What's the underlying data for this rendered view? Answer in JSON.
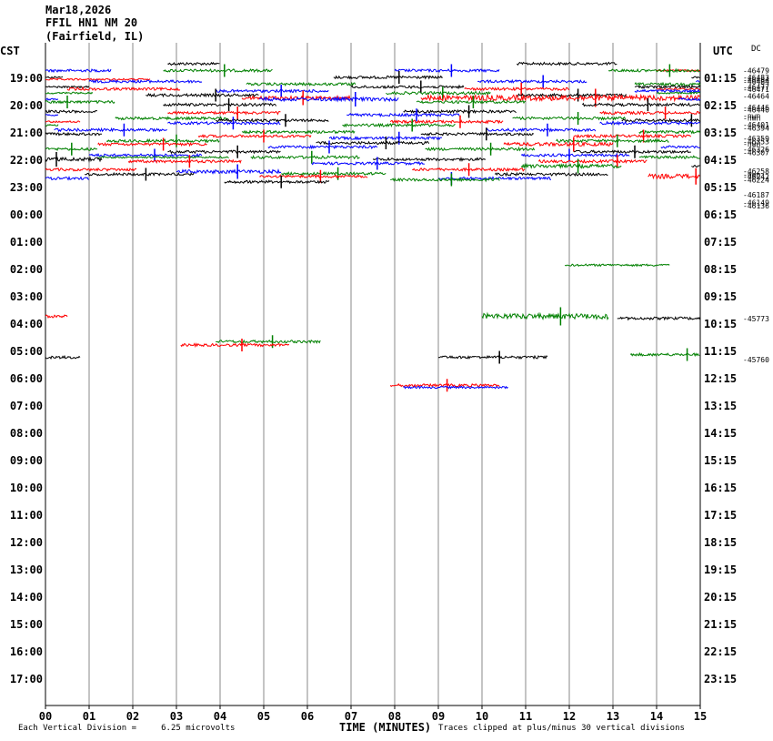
{
  "header": {
    "date": "Mar18,2026",
    "station": "FFIL HN1 NM 20",
    "location": "(Fairfield, IL)"
  },
  "corner_labels": {
    "left": "CST",
    "right": "UTC",
    "dc": "DC"
  },
  "footer": {
    "scale_note": "Each Vertical Division =     6.25 microvolts",
    "xlabel": "TIME (MINUTES)",
    "clip_note": "Traces clipped at plus/minus 30 vertical divisions"
  },
  "chart_data": {
    "type": "line",
    "title": "FFIL HN1 NM 20 (Fairfield, IL)",
    "xlabel": "TIME (MINUTES)",
    "xlim": [
      0,
      15
    ],
    "x_ticks": [
      "00",
      "01",
      "02",
      "03",
      "04",
      "05",
      "06",
      "07",
      "08",
      "09",
      "10",
      "11",
      "12",
      "13",
      "14",
      "15"
    ],
    "grid": true,
    "line_colors": [
      "#000000",
      "#ff0000",
      "#0000ff",
      "#008000"
    ],
    "rows_per_hour": 4,
    "left_hour_labels": [
      "19:00",
      "20:00",
      "21:00",
      "22:00",
      "23:00",
      "00:00",
      "01:00",
      "02:00",
      "03:00",
      "04:00",
      "05:00",
      "06:00",
      "07:00",
      "08:00",
      "09:00",
      "10:00",
      "11:00",
      "12:00",
      "13:00",
      "14:00",
      "15:00",
      "16:00",
      "17:00"
    ],
    "right_hour_labels": [
      "01:15",
      "02:15",
      "03:15",
      "04:15",
      "05:15",
      "06:15",
      "07:15",
      "08:15",
      "09:15",
      "10:15",
      "11:15",
      "12:15",
      "13:15",
      "14:15",
      "15:15",
      "16:15",
      "17:15",
      "18:15",
      "19:15",
      "20:15",
      "21:15",
      "22:15",
      "23:15"
    ],
    "dc_offsets": [
      {
        "row": -1,
        "value": "-46479"
      },
      {
        "row": 0,
        "value": "-46483"
      },
      {
        "row": 0.3,
        "value": "-46484"
      },
      {
        "row": 0.6,
        "value": "-46484"
      },
      {
        "row": 1.4,
        "value": "-46477"
      },
      {
        "row": 1.7,
        "value": "-46471"
      },
      {
        "row": 2.7,
        "value": "-46464"
      },
      {
        "row": 4.4,
        "value": "-46446"
      },
      {
        "row": 4.7,
        "value": "-46440"
      },
      {
        "row": 5.6,
        "value": "-nwn"
      },
      {
        "row": 5.9,
        "value": "-nwn"
      },
      {
        "row": 6.9,
        "value": "-46401"
      },
      {
        "row": 7.4,
        "value": "-46394"
      },
      {
        "row": 8.9,
        "value": "-46359"
      },
      {
        "row": 9.4,
        "value": "-46353"
      },
      {
        "row": 9.7,
        "value": "-nwn"
      },
      {
        "row": 10.5,
        "value": "-46326"
      },
      {
        "row": 11.0,
        "value": "-46307"
      },
      {
        "row": 13.7,
        "value": "-46258"
      },
      {
        "row": 14.2,
        "value": "-nwn"
      },
      {
        "row": 14.5,
        "value": "-46242"
      },
      {
        "row": 15.0,
        "value": "-46224"
      },
      {
        "row": 17.2,
        "value": "-46187"
      },
      {
        "row": 18.3,
        "value": "-46149"
      },
      {
        "row": 18.8,
        "value": "-46136"
      },
      {
        "row": 35.3,
        "value": "-45773"
      },
      {
        "row": 41.3,
        "value": "-45760"
      }
    ],
    "traces": [
      {
        "row": -2,
        "color": "black",
        "x0": 2.8,
        "x1": 4.0,
        "amp": 1.5
      },
      {
        "row": -2,
        "color": "black",
        "x0": 10.8,
        "x1": 13.1,
        "amp": 1.5
      },
      {
        "row": -1,
        "color": "blue",
        "x0": 0.0,
        "x1": 1.5,
        "amp": 1.5
      },
      {
        "row": -1,
        "color": "green",
        "x0": 2.7,
        "x1": 5.2,
        "amp": 1.5,
        "spike": 4.1
      },
      {
        "row": -1,
        "color": "blue",
        "x0": 8.0,
        "x1": 10.4,
        "amp": 1.5,
        "spike": 9.3
      },
      {
        "row": -1,
        "color": "red",
        "x0": 14.0,
        "x1": 15.0,
        "amp": 1.0
      },
      {
        "row": -1,
        "color": "green",
        "x0": 12.9,
        "x1": 15.0,
        "amp": 1.5,
        "spike": 14.3
      },
      {
        "row": 0,
        "color": "black",
        "x0": 0.0,
        "x1": 0.4,
        "amp": 1.0
      },
      {
        "row": 0,
        "color": "black",
        "x0": 6.6,
        "x1": 9.1,
        "amp": 1.5,
        "spike": 8.1
      },
      {
        "row": 0,
        "color": "black",
        "x0": 14.8,
        "x1": 15.0,
        "amp": 1.0
      },
      {
        "row": 0.3,
        "color": "red",
        "x0": 0.0,
        "x1": 2.4,
        "amp": 1.0
      },
      {
        "row": 0.6,
        "color": "blue",
        "x0": 1.0,
        "x1": 3.6,
        "amp": 1.5
      },
      {
        "row": 0.6,
        "color": "blue",
        "x0": 9.9,
        "x1": 12.4,
        "amp": 1.5,
        "spike": 11.4
      },
      {
        "row": 0.6,
        "color": "blue",
        "x0": 14.9,
        "x1": 15.0,
        "amp": 1.0
      },
      {
        "row": 1.0,
        "color": "green",
        "x0": 4.6,
        "x1": 7.1,
        "amp": 1.5
      },
      {
        "row": 1.0,
        "color": "green",
        "x0": 13.5,
        "x1": 15.0,
        "amp": 1.5
      },
      {
        "row": 1.4,
        "color": "black",
        "x0": 0.0,
        "x1": 1.0,
        "amp": 1.0
      },
      {
        "row": 1.4,
        "color": "black",
        "x0": 7.0,
        "x1": 9.6,
        "amp": 1.5,
        "spike": 8.6
      },
      {
        "row": 1.4,
        "color": "black",
        "x0": 13.5,
        "x1": 15.0,
        "amp": 1.5
      },
      {
        "row": 1.7,
        "color": "red",
        "x0": 0.5,
        "x1": 3.1,
        "amp": 1.5
      },
      {
        "row": 1.7,
        "color": "red",
        "x0": 9.6,
        "x1": 12.0,
        "amp": 1.5,
        "spike": 10.9
      },
      {
        "row": 1.7,
        "color": "red",
        "x0": 14.0,
        "x1": 15.0,
        "amp": 1.0
      },
      {
        "row": 2.0,
        "color": "blue",
        "x0": 3.9,
        "x1": 6.5,
        "amp": 1.5,
        "spike": 5.4
      },
      {
        "row": 2.0,
        "color": "blue",
        "x0": 13.5,
        "x1": 15.0,
        "amp": 1.5
      },
      {
        "row": 2.3,
        "color": "green",
        "x0": 0.0,
        "x1": 1.1,
        "amp": 1.0
      },
      {
        "row": 2.3,
        "color": "green",
        "x0": 7.8,
        "x1": 10.2,
        "amp": 1.5,
        "spike": 9.1
      },
      {
        "row": 2.3,
        "color": "green",
        "x0": 14.0,
        "x1": 15.0,
        "amp": 1.0
      },
      {
        "row": 2.6,
        "color": "black",
        "x0": 2.3,
        "x1": 4.9,
        "amp": 1.5,
        "spike": 3.9
      },
      {
        "row": 2.6,
        "color": "black",
        "x0": 10.8,
        "x1": 13.3,
        "amp": 1.5,
        "spike": 12.2
      },
      {
        "row": 3.0,
        "color": "red",
        "x0": 4.5,
        "x1": 7.0,
        "amp": 2.0,
        "spike": 5.9
      },
      {
        "row": 3.0,
        "color": "red",
        "x0": 8.6,
        "x1": 15.0,
        "amp": 3.0,
        "spike": 12.6
      },
      {
        "row": 3.2,
        "color": "blue",
        "x0": 0.0,
        "x1": 0.3,
        "amp": 1.0
      },
      {
        "row": 3.2,
        "color": "blue",
        "x0": 4.9,
        "x1": 8.1,
        "amp": 2.0,
        "spike": 7.1
      },
      {
        "row": 3.2,
        "color": "blue",
        "x0": 14.5,
        "x1": 15.0,
        "amp": 1.5
      },
      {
        "row": 3.6,
        "color": "green",
        "x0": 0.0,
        "x1": 1.6,
        "amp": 1.5,
        "spike": 0.5
      },
      {
        "row": 3.6,
        "color": "green",
        "x0": 8.5,
        "x1": 11.0,
        "amp": 1.5,
        "spike": 9.8
      },
      {
        "row": 4.0,
        "color": "black",
        "x0": 2.7,
        "x1": 5.3,
        "amp": 1.5,
        "spike": 4.2
      },
      {
        "row": 4.0,
        "color": "black",
        "x0": 12.3,
        "x1": 15.0,
        "amp": 1.5,
        "spike": 13.8
      },
      {
        "row": 5.0,
        "color": "black",
        "x0": 0.0,
        "x1": 1.2,
        "amp": 1.5
      },
      {
        "row": 5.0,
        "color": "black",
        "x0": 8.2,
        "x1": 10.8,
        "amp": 1.5,
        "spike": 9.7
      },
      {
        "row": 5.2,
        "color": "red",
        "x0": 2.8,
        "x1": 5.4,
        "amp": 1.5,
        "spike": 4.4
      },
      {
        "row": 5.2,
        "color": "red",
        "x0": 12.7,
        "x1": 15.0,
        "amp": 1.5,
        "spike": 14.2
      },
      {
        "row": 5.5,
        "color": "blue",
        "x0": 0.0,
        "x1": 0.3,
        "amp": 1.0
      },
      {
        "row": 5.5,
        "color": "blue",
        "x0": 6.9,
        "x1": 9.5,
        "amp": 1.5,
        "spike": 8.5
      },
      {
        "row": 6.0,
        "color": "green",
        "x0": 1.6,
        "x1": 4.2,
        "amp": 1.5
      },
      {
        "row": 6.0,
        "color": "green",
        "x0": 10.7,
        "x1": 13.3,
        "amp": 1.5,
        "spike": 12.2
      },
      {
        "row": 6.3,
        "color": "black",
        "x0": 3.9,
        "x1": 6.5,
        "amp": 1.5,
        "spike": 5.5
      },
      {
        "row": 6.3,
        "color": "black",
        "x0": 13.2,
        "x1": 15.0,
        "amp": 1.5,
        "spike": 14.8
      },
      {
        "row": 6.5,
        "color": "red",
        "x0": 0.0,
        "x1": 0.8,
        "amp": 1.0
      },
      {
        "row": 6.5,
        "color": "red",
        "x0": 7.9,
        "x1": 10.5,
        "amp": 1.5,
        "spike": 9.5
      },
      {
        "row": 6.7,
        "color": "blue",
        "x0": 2.8,
        "x1": 5.4,
        "amp": 1.5,
        "spike": 4.3
      },
      {
        "row": 6.7,
        "color": "blue",
        "x0": 12.7,
        "x1": 15.0,
        "amp": 1.5
      },
      {
        "row": 7.0,
        "color": "green",
        "x0": 0.0,
        "x1": 0.3,
        "amp": 1.0
      },
      {
        "row": 7.0,
        "color": "green",
        "x0": 6.8,
        "x1": 9.4,
        "amp": 1.5,
        "spike": 8.4
      },
      {
        "row": 7.7,
        "color": "blue",
        "x0": 0.2,
        "x1": 2.8,
        "amp": 1.5,
        "spike": 1.8
      },
      {
        "row": 7.7,
        "color": "blue",
        "x0": 10.1,
        "x1": 12.6,
        "amp": 1.5,
        "spike": 11.5
      },
      {
        "row": 8.0,
        "color": "green",
        "x0": 4.5,
        "x1": 7.1,
        "amp": 1.5
      },
      {
        "row": 8.0,
        "color": "green",
        "x0": 13.6,
        "x1": 15.0,
        "amp": 1.5
      },
      {
        "row": 8.3,
        "color": "black",
        "x0": 0.0,
        "x1": 1.3,
        "amp": 1.5
      },
      {
        "row": 8.3,
        "color": "black",
        "x0": 8.6,
        "x1": 11.2,
        "amp": 1.5,
        "spike": 10.1
      },
      {
        "row": 8.6,
        "color": "red",
        "x0": 3.5,
        "x1": 6.1,
        "amp": 1.5,
        "spike": 5.0
      },
      {
        "row": 8.6,
        "color": "red",
        "x0": 12.1,
        "x1": 14.8,
        "amp": 1.5,
        "spike": 13.7
      },
      {
        "row": 8.9,
        "color": "blue",
        "x0": 6.5,
        "x1": 9.1,
        "amp": 1.5,
        "spike": 8.1
      },
      {
        "row": 9.3,
        "color": "green",
        "x0": 1.4,
        "x1": 4.0,
        "amp": 1.5,
        "spike": 3.0
      },
      {
        "row": 9.3,
        "color": "green",
        "x0": 11.7,
        "x1": 14.3,
        "amp": 1.5,
        "spike": 13.1
      },
      {
        "row": 9.6,
        "color": "black",
        "x0": 6.2,
        "x1": 8.8,
        "amp": 1.5,
        "spike": 7.8
      },
      {
        "row": 9.8,
        "color": "red",
        "x0": 1.2,
        "x1": 3.7,
        "amp": 1.5,
        "spike": 2.7
      },
      {
        "row": 9.8,
        "color": "red",
        "x0": 10.5,
        "x1": 13.0,
        "amp": 2.0,
        "spike": 12.1
      },
      {
        "row": 10.2,
        "color": "blue",
        "x0": 5.1,
        "x1": 7.6,
        "amp": 1.5,
        "spike": 6.5
      },
      {
        "row": 10.2,
        "color": "blue",
        "x0": 14.1,
        "x1": 15.0,
        "amp": 1.5
      },
      {
        "row": 10.5,
        "color": "green",
        "x0": 0.0,
        "x1": 1.2,
        "amp": 1.5,
        "spike": 0.6
      },
      {
        "row": 10.5,
        "color": "green",
        "x0": 8.7,
        "x1": 11.2,
        "amp": 1.5,
        "spike": 10.2
      },
      {
        "row": 10.9,
        "color": "black",
        "x0": 2.8,
        "x1": 5.4,
        "amp": 1.5,
        "spike": 4.4
      },
      {
        "row": 10.9,
        "color": "black",
        "x0": 12.1,
        "x1": 14.8,
        "amp": 1.5,
        "spike": 13.5
      },
      {
        "row": 11.4,
        "color": "blue",
        "x0": 1.0,
        "x1": 3.6,
        "amp": 1.5,
        "spike": 2.5
      },
      {
        "row": 11.4,
        "color": "blue",
        "x0": 10.9,
        "x1": 13.4,
        "amp": 1.5,
        "spike": 12.0
      },
      {
        "row": 11.7,
        "color": "green",
        "x0": 1.2,
        "x1": 4.2,
        "amp": 1.0
      },
      {
        "row": 11.7,
        "color": "green",
        "x0": 4.7,
        "x1": 7.2,
        "amp": 1.5,
        "spike": 6.1
      },
      {
        "row": 11.7,
        "color": "green",
        "x0": 13.6,
        "x1": 15.0,
        "amp": 1.5
      },
      {
        "row": 12.0,
        "color": "black",
        "x0": 0.0,
        "x1": 1.3,
        "amp": 2.0,
        "spike": 0.25
      },
      {
        "row": 12.0,
        "color": "black",
        "x0": 7.5,
        "x1": 10.1,
        "amp": 1.5
      },
      {
        "row": 12.3,
        "color": "red",
        "x0": 1.9,
        "x1": 4.5,
        "amp": 1.5,
        "spike": 3.3
      },
      {
        "row": 12.3,
        "color": "red",
        "x0": 11.3,
        "x1": 13.8,
        "amp": 1.5,
        "spike": 13.1
      },
      {
        "row": 12.6,
        "color": "blue",
        "x0": 6.1,
        "x1": 8.7,
        "amp": 1.5,
        "spike": 7.6
      },
      {
        "row": 13.0,
        "color": "green",
        "x0": 10.9,
        "x1": 13.2,
        "amp": 2.0,
        "spike": 12.2
      },
      {
        "row": 13.0,
        "color": "black",
        "x0": 14.8,
        "x1": 15.0,
        "amp": 1.0
      },
      {
        "row": 13.5,
        "color": "red",
        "x0": 0.0,
        "x1": 2.1,
        "amp": 1.5
      },
      {
        "row": 13.5,
        "color": "red",
        "x0": 8.4,
        "x1": 11.0,
        "amp": 1.5,
        "spike": 9.7
      },
      {
        "row": 13.8,
        "color": "blue",
        "x0": 3.0,
        "x1": 5.4,
        "amp": 2.0,
        "spike": 4.4
      },
      {
        "row": 14.1,
        "color": "green",
        "x0": 5.4,
        "x1": 7.8,
        "amp": 1.5,
        "spike": 6.7
      },
      {
        "row": 14.2,
        "color": "black",
        "x0": 0.9,
        "x1": 3.4,
        "amp": 1.5,
        "spike": 2.3
      },
      {
        "row": 14.2,
        "color": "black",
        "x0": 10.3,
        "x1": 12.9,
        "amp": 1.5
      },
      {
        "row": 14.5,
        "color": "red",
        "x0": 4.9,
        "x1": 7.4,
        "amp": 1.5,
        "spike": 6.3
      },
      {
        "row": 14.5,
        "color": "red",
        "x0": 13.8,
        "x1": 15.0,
        "amp": 2.5,
        "spike": 14.9
      },
      {
        "row": 14.8,
        "color": "blue",
        "x0": 0.0,
        "x1": 1.0,
        "amp": 1.5
      },
      {
        "row": 14.8,
        "color": "blue",
        "x0": 9.0,
        "x1": 11.6,
        "amp": 1.5,
        "spike": 9.3
      },
      {
        "row": 15.0,
        "color": "green",
        "x0": 7.9,
        "x1": 10.4,
        "amp": 1.5,
        "spike": 9.3
      },
      {
        "row": 15.3,
        "color": "black",
        "x0": 4.1,
        "x1": 6.5,
        "amp": 1.5,
        "spike": 5.4
      },
      {
        "row": 27.5,
        "color": "green",
        "x0": 11.9,
        "x1": 14.3,
        "amp": 1.2
      },
      {
        "row": 35.0,
        "color": "red",
        "x0": 0.0,
        "x1": 0.5,
        "amp": 1.5
      },
      {
        "row": 35.0,
        "color": "green",
        "x0": 10.0,
        "x1": 12.9,
        "amp": 3.0,
        "spike": 11.8
      },
      {
        "row": 35.3,
        "color": "black",
        "x0": 13.1,
        "x1": 15.0,
        "amp": 1.5
      },
      {
        "row": 38.7,
        "color": "green",
        "x0": 3.9,
        "x1": 6.3,
        "amp": 1.5,
        "spike": 5.2
      },
      {
        "row": 39.2,
        "color": "red",
        "x0": 3.1,
        "x1": 5.6,
        "amp": 1.5,
        "spike": 4.5
      },
      {
        "row": 40.6,
        "color": "green",
        "x0": 13.4,
        "x1": 15.0,
        "amp": 1.5,
        "spike": 14.7
      },
      {
        "row": 41.0,
        "color": "black",
        "x0": 0.0,
        "x1": 0.8,
        "amp": 1.5
      },
      {
        "row": 41.0,
        "color": "black",
        "x0": 9.0,
        "x1": 11.5,
        "amp": 1.5,
        "spike": 10.4
      },
      {
        "row": 45.1,
        "color": "red",
        "x0": 7.9,
        "x1": 10.4,
        "amp": 1.5,
        "spike": 9.2
      },
      {
        "row": 45.4,
        "color": "blue",
        "x0": 8.2,
        "x1": 10.6,
        "amp": 1.2
      }
    ]
  }
}
